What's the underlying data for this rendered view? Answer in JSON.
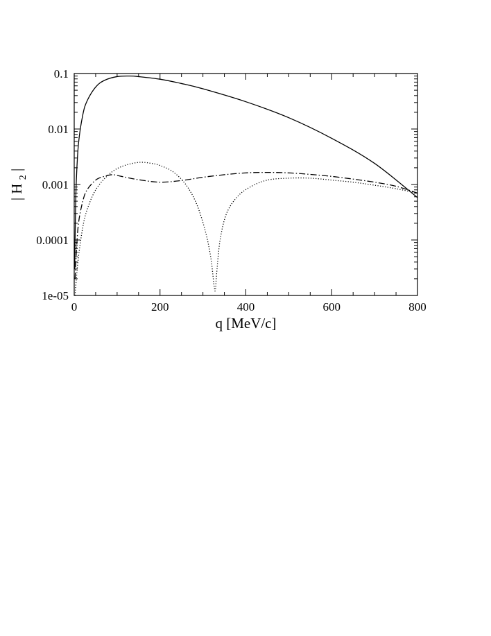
{
  "chart_data": {
    "type": "line",
    "title": "",
    "xlabel": "q [MeV/c]",
    "ylabel": {
      "main": "| H",
      "sub": "2",
      "close": " |"
    },
    "xlim": [
      0,
      800
    ],
    "ylim": [
      1e-05,
      0.1
    ],
    "yscale": "log",
    "grid": false,
    "legend": "none",
    "x_ticks": [
      0,
      200,
      400,
      600,
      800
    ],
    "x_tick_labels": [
      "0",
      "200",
      "400",
      "600",
      "800"
    ],
    "y_ticks": [
      1e-05,
      0.0001,
      0.001,
      0.01,
      0.1
    ],
    "y_tick_labels": [
      "1e-05",
      "0.0001",
      "0.001",
      "0.01",
      "0.1"
    ],
    "series": [
      {
        "style": "solid",
        "x": [
          1,
          3,
          5,
          10,
          20,
          30,
          50,
          70,
          100,
          130,
          150,
          200,
          250,
          300,
          400,
          500,
          600,
          700,
          800
        ],
        "y": [
          3e-05,
          0.0003,
          0.0012,
          0.0055,
          0.018,
          0.032,
          0.057,
          0.075,
          0.088,
          0.09,
          0.088,
          0.079,
          0.066,
          0.053,
          0.031,
          0.016,
          0.0068,
          0.0024,
          0.00058
        ]
      },
      {
        "style": "dotted",
        "x": [
          2,
          5,
          10,
          20,
          30,
          50,
          80,
          110,
          150,
          180,
          200,
          230,
          260,
          285,
          305,
          318,
          326,
          329,
          332,
          340,
          355,
          380,
          410,
          450,
          500,
          550,
          600,
          650,
          700,
          750,
          800
        ],
        "y": [
          1e-05,
          2e-05,
          5e-05,
          0.00017,
          0.00035,
          0.0008,
          0.0015,
          0.0021,
          0.0025,
          0.0024,
          0.0022,
          0.0017,
          0.001,
          0.00045,
          0.00015,
          5e-05,
          1.5e-05,
          1.25e-05,
          2.5e-05,
          0.0001,
          0.0003,
          0.0006,
          0.0009,
          0.0012,
          0.0013,
          0.0013,
          0.0012,
          0.0011,
          0.00097,
          0.00084,
          0.0007
        ]
      },
      {
        "style": "dashdot",
        "x": [
          2,
          5,
          10,
          20,
          30,
          50,
          70,
          90,
          110,
          150,
          200,
          250,
          300,
          350,
          400,
          450,
          500,
          550,
          600,
          650,
          700,
          750,
          800
        ],
        "y": [
          2e-05,
          6e-05,
          0.0002,
          0.0005,
          0.0008,
          0.0012,
          0.0014,
          0.0015,
          0.0014,
          0.00122,
          0.0011,
          0.00118,
          0.00135,
          0.0015,
          0.00162,
          0.00165,
          0.00162,
          0.00152,
          0.0014,
          0.00125,
          0.0011,
          0.00093,
          0.0007
        ]
      }
    ]
  }
}
